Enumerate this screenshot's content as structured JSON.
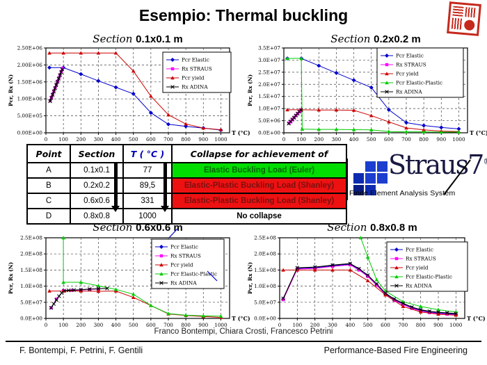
{
  "slide": {
    "title": "Esempio: Thermal buckling",
    "credits": "Franco Bontempi, Chiara Crosti, Francesco Petrini",
    "footer_left": "F. Bontempi, F. Petrini, F. Gentili",
    "footer_right": "Performance-Based Fire Engineering"
  },
  "logo": {
    "name": "Straus7",
    "reg": "®",
    "subtitle": "Finite Element Analysis System"
  },
  "table": {
    "headers": [
      "Point",
      "Section",
      "T ( °C )",
      "Collapse for achievement of"
    ],
    "rows": [
      {
        "point": "A",
        "section": "0.1x0.1",
        "temp": "77",
        "collapse": "Elastic Buckling Load (Euler)",
        "bg": "#00dd00",
        "fg": "#006600"
      },
      {
        "point": "B",
        "section": "0.2x0.2",
        "temp": "89,5",
        "collapse": "Elastic-Plastic Buckling Load (Shanley)",
        "bg": "#ee1111",
        "fg": "#7a1010"
      },
      {
        "point": "C",
        "section": "0.6x0.6",
        "temp": "331",
        "collapse": "Elastic-Plastic Buckling Load (Shanley)",
        "bg": "#ee1111",
        "fg": "#7a1010"
      },
      {
        "point": "D",
        "section": "0.8x0.8",
        "temp": "1000",
        "collapse": "No collapse",
        "bg": "#ffffff",
        "fg": "#000000"
      }
    ]
  },
  "chart_data": [
    {
      "type": "line",
      "title_prefix": "Section",
      "title": "0.1x0.1 m",
      "xlabel": "T (°C)",
      "ylabel": "Pcr, Rx (N)",
      "xlim": [
        0,
        1050
      ],
      "ylim": [
        0,
        2500000
      ],
      "xticks": [
        0,
        100,
        200,
        300,
        400,
        500,
        600,
        700,
        800,
        900,
        1000
      ],
      "ytick_labels": [
        "0.00E+00",
        "5.00E+05",
        "1.00E+06",
        "1.50E+06",
        "2.00E+06",
        "2.50E+06"
      ],
      "grid": true,
      "legend_position": "upper-right",
      "series": [
        {
          "name": "Pcr Elastic",
          "color": "#0000cc",
          "marker": "diamond",
          "x": [
            20,
            100,
            200,
            300,
            400,
            500,
            600,
            700,
            800,
            900,
            1000
          ],
          "y": [
            1920000,
            1920000,
            1730000,
            1530000,
            1340000,
            1150000,
            590000,
            250000,
            190000,
            140000,
            80000
          ]
        },
        {
          "name": "Rx STRAUS",
          "color": "#ff00ff",
          "marker": "square",
          "x": [
            25,
            32,
            39,
            46,
            53,
            60,
            67,
            74,
            81,
            88,
            95
          ],
          "y": [
            950000,
            1045000,
            1140000,
            1235000,
            1330000,
            1425000,
            1520000,
            1615000,
            1710000,
            1805000,
            1900000
          ]
        },
        {
          "name": "Pcr yield",
          "color": "#cc0000",
          "marker": "triangle",
          "x": [
            20,
            100,
            200,
            300,
            400,
            500,
            600,
            700,
            800,
            900,
            1000
          ],
          "y": [
            2350000,
            2350000,
            2350000,
            2350000,
            2350000,
            1820000,
            1080000,
            530000,
            260000,
            140000,
            90000
          ]
        },
        {
          "name": "Rx ADINA",
          "color": "#000000",
          "marker": "x",
          "x": [
            24,
            31,
            38,
            45,
            52,
            59,
            66,
            73,
            80,
            87,
            93
          ],
          "y": [
            930000,
            1025000,
            1120000,
            1215000,
            1310000,
            1405000,
            1500000,
            1595000,
            1690000,
            1785000,
            1870000
          ]
        }
      ]
    },
    {
      "type": "line",
      "title_prefix": "Section",
      "title": "0.2x0.2 m",
      "xlabel": "T (°C)",
      "ylabel": "Pcr, Rx (N)",
      "xlim": [
        0,
        1050
      ],
      "ylim": [
        0,
        35000000
      ],
      "xticks": [
        0,
        100,
        200,
        300,
        400,
        500,
        600,
        700,
        800,
        900,
        1000
      ],
      "ytick_labels": [
        "0.0E+00",
        "5.0E+06",
        "1.0E+07",
        "1.5E+07",
        "2.0E+07",
        "2.5E+07",
        "3.0E+07",
        "3.5E+07"
      ],
      "grid": true,
      "legend_position": "upper-right",
      "series": [
        {
          "name": "Pcr Elastic",
          "color": "#0000cc",
          "marker": "diamond",
          "x": [
            20,
            100,
            200,
            300,
            400,
            500,
            600,
            700,
            800,
            900,
            1000
          ],
          "y": [
            30700000,
            30700000,
            27700000,
            24700000,
            21700000,
            18700000,
            9500000,
            4200000,
            3000000,
            2200000,
            1600000
          ]
        },
        {
          "name": "Rx STRAUS",
          "color": "#ff00ff",
          "marker": "square",
          "x": [
            30,
            40,
            50,
            60,
            70,
            80,
            90,
            100
          ],
          "y": [
            4000000,
            4800000,
            5600000,
            6400000,
            7200000,
            8000000,
            8800000,
            9500000
          ]
        },
        {
          "name": "Pcr yield",
          "color": "#cc0000",
          "marker": "triangle",
          "x": [
            20,
            100,
            200,
            300,
            400,
            500,
            600,
            700,
            800,
            900,
            1000
          ],
          "y": [
            9500000,
            9500000,
            9400000,
            9400000,
            9300000,
            7100000,
            4500000,
            2000000,
            1200000,
            700000,
            500000
          ]
        },
        {
          "name": "Pcr Elastic-Plastic",
          "color": "#00cc00",
          "marker": "triangle",
          "x": [
            20,
            100,
            105,
            200,
            300,
            400,
            500,
            600,
            700,
            800,
            900,
            1000
          ],
          "y": [
            30700000,
            30700000,
            1500000,
            1400000,
            1400000,
            1300000,
            1200000,
            500000,
            400000,
            400000,
            300000,
            300000
          ]
        },
        {
          "name": "Rx ADINA",
          "color": "#000000",
          "marker": "x",
          "x": [
            28,
            38,
            48,
            58,
            68,
            78,
            88,
            98
          ],
          "y": [
            3800000,
            4600000,
            5400000,
            6200000,
            7100000,
            7900000,
            8700000,
            9400000
          ]
        }
      ]
    },
    {
      "type": "line",
      "title_prefix": "Section",
      "title": "0.6x0.6 m",
      "xlabel": "T (°C)",
      "ylabel": "Pcr, Rx (N)",
      "xlim": [
        0,
        1050
      ],
      "ylim": [
        0,
        250000000
      ],
      "xticks": [
        0,
        100,
        200,
        300,
        400,
        500,
        600,
        700,
        800,
        900,
        1000
      ],
      "ytick_labels": [
        "0.0E+00",
        "5.0E+07",
        "1.0E+08",
        "1.5E+08",
        "2.0E+08",
        "2.5E+08"
      ],
      "grid": true,
      "legend_position": "upper-right",
      "series": [
        {
          "name": "Pcr Elastic",
          "color": "#0000cc",
          "marker": "diamond",
          "x": [],
          "y": []
        },
        {
          "name": "Rx STRAUS",
          "color": "#ff00ff",
          "marker": "square",
          "x": [
            30,
            60,
            100,
            150,
            200,
            250,
            300
          ],
          "y": [
            33000000,
            60000000,
            86000000,
            87000000,
            88000000,
            90000000,
            91000000
          ]
        },
        {
          "name": "Pcr yield",
          "color": "#cc0000",
          "marker": "triangle",
          "x": [
            20,
            100,
            200,
            300,
            400,
            500,
            600,
            700,
            800,
            900,
            1000
          ],
          "y": [
            85000000,
            85000000,
            85000000,
            84000000,
            85000000,
            65000000,
            40000000,
            14000000,
            9000000,
            6000000,
            3000000
          ]
        },
        {
          "name": "Pcr Elastic-Plastic",
          "color": "#00cc00",
          "marker": "triangle",
          "x": [
            100,
            100,
            200,
            300,
            400,
            500,
            600,
            700,
            800,
            900,
            1000
          ],
          "y": [
            250000000,
            112000000,
            112000000,
            101000000,
            90000000,
            75000000,
            40000000,
            15000000,
            10000000,
            8000000,
            7000000
          ]
        },
        {
          "name": "Rx ADINA",
          "color": "#000000",
          "marker": "x",
          "x": [
            30,
            45,
            60,
            75,
            90,
            105,
            130,
            160,
            200,
            250,
            300,
            350
          ],
          "y": [
            33000000,
            45000000,
            57000000,
            69000000,
            79000000,
            86000000,
            87000000,
            88000000,
            89000000,
            91000000,
            92000000,
            93000000
          ]
        }
      ]
    },
    {
      "type": "line",
      "title_prefix": "Section",
      "title": "0.8x0.8 m",
      "xlabel": "T (°C)",
      "ylabel": "Pcr, Rx (N)",
      "xlim": [
        0,
        1050
      ],
      "ylim": [
        0,
        250000000
      ],
      "xticks": [
        0,
        100,
        200,
        300,
        400,
        500,
        600,
        700,
        800,
        900,
        1000
      ],
      "ytick_labels": [
        "0.0E+00",
        "5.0E+07",
        "1.0E+08",
        "1.5E+08",
        "2.0E+08",
        "2.5E+08"
      ],
      "grid": true,
      "legend_position": "upper-right",
      "series": [
        {
          "name": "Pcr Elastic",
          "color": "#0000cc",
          "marker": "diamond",
          "x": [
            20,
            100,
            200,
            300,
            400,
            450,
            500,
            550,
            600,
            650,
            700,
            750,
            800,
            850,
            900,
            950,
            1000
          ],
          "y": [
            60000000,
            155000000,
            157000000,
            163000000,
            168000000,
            152000000,
            132000000,
            105000000,
            76000000,
            58000000,
            45000000,
            33000000,
            25000000,
            20000000,
            17000000,
            15000000,
            13000000
          ]
        },
        {
          "name": "Rx STRAUS",
          "color": "#ff00ff",
          "marker": "square",
          "x": [
            20,
            100,
            200,
            300,
            400,
            450,
            500,
            550,
            600,
            650,
            700,
            750,
            800,
            850,
            900,
            950,
            1000
          ],
          "y": [
            58000000,
            153000000,
            155000000,
            161000000,
            166000000,
            150000000,
            130000000,
            103000000,
            74000000,
            56000000,
            43000000,
            31000000,
            23000000,
            18000000,
            15000000,
            13000000,
            11000000
          ]
        },
        {
          "name": "Pcr yield",
          "color": "#cc0000",
          "marker": "triangle",
          "x": [
            20,
            100,
            200,
            300,
            400,
            500,
            600,
            700,
            800,
            900,
            1000
          ],
          "y": [
            150000000,
            150000000,
            150000000,
            150000000,
            150000000,
            117000000,
            73000000,
            37000000,
            20000000,
            13000000,
            10000000
          ]
        },
        {
          "name": "Pcr Elastic-Plastic",
          "color": "#00cc00",
          "marker": "triangle",
          "x": [
            460,
            500,
            550,
            600,
            700,
            800,
            900,
            1000
          ],
          "y": [
            250000000,
            190000000,
            120000000,
            85000000,
            52000000,
            37000000,
            27000000,
            20000000
          ]
        },
        {
          "name": "Rx ADINA",
          "color": "#000000",
          "marker": "x",
          "x": [
            20,
            100,
            200,
            300,
            400,
            450,
            500,
            550,
            600,
            650,
            700,
            750,
            800,
            850,
            900,
            950,
            1000
          ],
          "y": [
            62000000,
            157000000,
            159000000,
            165000000,
            170000000,
            154000000,
            134000000,
            107000000,
            78000000,
            60000000,
            47000000,
            35000000,
            27000000,
            22000000,
            19000000,
            17000000,
            15000000
          ]
        }
      ]
    }
  ]
}
